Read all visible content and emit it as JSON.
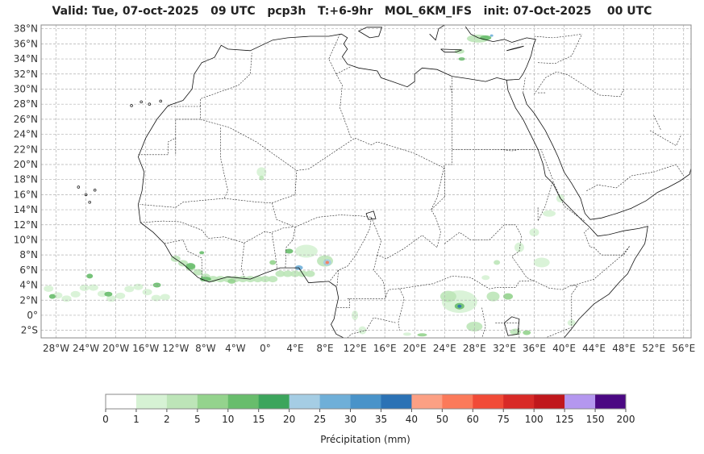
{
  "title": {
    "valid": "Valid: Tue, 07-oct-2025",
    "hour": "09 UTC",
    "var": "pcp3h",
    "range": "T:+6-9hr",
    "model": "MOL_6KM_IFS",
    "init": "init: 07-Oct-2025",
    "init_hour": "00 UTC"
  },
  "map": {
    "lat_labels": [
      "38°N",
      "36°N",
      "34°N",
      "32°N",
      "30°N",
      "28°N",
      "26°N",
      "24°N",
      "22°N",
      "20°N",
      "18°N",
      "16°N",
      "14°N",
      "12°N",
      "10°N",
      "8°N",
      "6°N",
      "4°N",
      "2°N",
      "0°",
      "2°S"
    ],
    "lat_values": [
      38,
      36,
      34,
      32,
      30,
      28,
      26,
      24,
      22,
      20,
      18,
      16,
      14,
      12,
      10,
      8,
      6,
      4,
      2,
      0,
      -2
    ],
    "lon_labels": [
      "28°W",
      "24°W",
      "20°W",
      "16°W",
      "12°W",
      "8°W",
      "4°W",
      "0°",
      "4°E",
      "8°E",
      "12°E",
      "16°E",
      "20°E",
      "24°E",
      "28°E",
      "32°E",
      "36°E",
      "40°E",
      "44°E",
      "48°E",
      "52°E",
      "56°E"
    ],
    "lon_values": [
      -28,
      -24,
      -20,
      -16,
      -12,
      -8,
      -4,
      0,
      4,
      8,
      12,
      16,
      20,
      24,
      28,
      32,
      36,
      40,
      44,
      48,
      52,
      56
    ],
    "lon_range": [
      -30,
      57
    ],
    "lat_range": [
      -3,
      38.5
    ],
    "gridlines": true
  },
  "colorbar": {
    "title": "Précipitation (mm)",
    "ticks": [
      "0",
      "1",
      "2",
      "5",
      "10",
      "15",
      "20",
      "25",
      "30",
      "35",
      "40",
      "50",
      "60",
      "75",
      "100",
      "125",
      "150",
      "200"
    ],
    "colors": [
      "#ffffff",
      "#d6f2d4",
      "#bde5b8",
      "#94d38d",
      "#68bd6c",
      "#3ca55c",
      "#a5cde4",
      "#6fafd8",
      "#4993c9",
      "#2b72b5",
      "#fca084",
      "#fb7a5a",
      "#f14b37",
      "#d82a27",
      "#c0171c",
      "#b497ef",
      "#4b0883"
    ]
  },
  "precip_areas": [
    {
      "name": "west-africa-coast-band",
      "level": 3
    },
    {
      "name": "atlantic-band",
      "level": 2
    },
    {
      "name": "nigeria-cameroon-cell",
      "level": 4
    },
    {
      "name": "central-africa-cells",
      "level": 3
    },
    {
      "name": "east-africa-cells",
      "level": 2
    },
    {
      "name": "turkey-coast",
      "level": 3
    },
    {
      "name": "sahel-patch",
      "level": 1
    }
  ]
}
